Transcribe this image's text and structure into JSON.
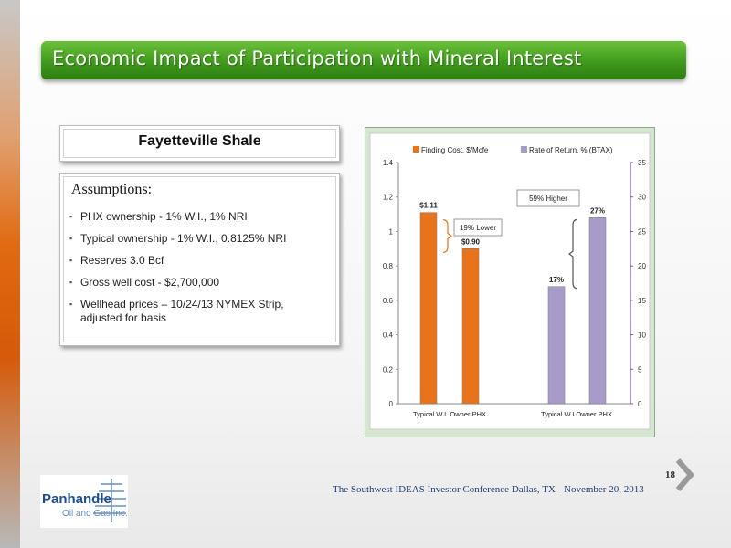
{
  "slide": {
    "title": "Economic Impact of Participation with Mineral Interest",
    "page_number": "18",
    "footer": "The Southwest  IDEAS Investor Conference Dallas, TX - November 20, 2013"
  },
  "left_panel": {
    "shale_title": "Fayetteville Shale",
    "assumptions_heading": "Assumptions:",
    "assumptions": [
      "PHX ownership - 1% W.I., 1% NRI",
      "Typical  ownership - 1% W.I., 0.8125% NRI",
      "Reserves  3.0 Bcf",
      "Gross well cost - $2,700,000",
      "Wellhead prices – 10/24/13 NYMEX Strip, adjusted for basis"
    ]
  },
  "logo": {
    "name": "Panhandle",
    "sub": "Oil and Gas Inc."
  },
  "colors": {
    "title_green": "#3f9a1c",
    "finding_cost": "#e8731a",
    "rate_of_return": "#a99bc9"
  },
  "chart_data": {
    "type": "bar",
    "legend": [
      "Finding Cost, $/Mcfe",
      "Rate of Return, % (BTAX)"
    ],
    "legend_position": "top",
    "groups": [
      {
        "series": "Finding Cost, $/Mcfe",
        "axis": "left",
        "categories": [
          "Typical W.I. Owner",
          "PHX"
        ],
        "values": [
          1.11,
          0.9
        ],
        "labels": [
          "$1.11",
          "$0.90"
        ]
      },
      {
        "series": "Rate of Return, % (BTAX)",
        "axis": "right",
        "categories": [
          "Typical W.I Owner",
          "PHX"
        ],
        "values": [
          17,
          27
        ],
        "labels": [
          "17%",
          "27%"
        ]
      }
    ],
    "y_left": {
      "min": 0,
      "max": 1.4,
      "ticks": [
        "0",
        "0.2",
        "0.4",
        "0.6",
        "0.8",
        "1",
        "1.2",
        "1.4"
      ]
    },
    "y_right": {
      "min": 0,
      "max": 35,
      "ticks": [
        "0",
        "5",
        "10",
        "15",
        "20",
        "25",
        "30",
        "35"
      ]
    },
    "annotations": [
      "19% Lower",
      "59% Higher"
    ]
  }
}
